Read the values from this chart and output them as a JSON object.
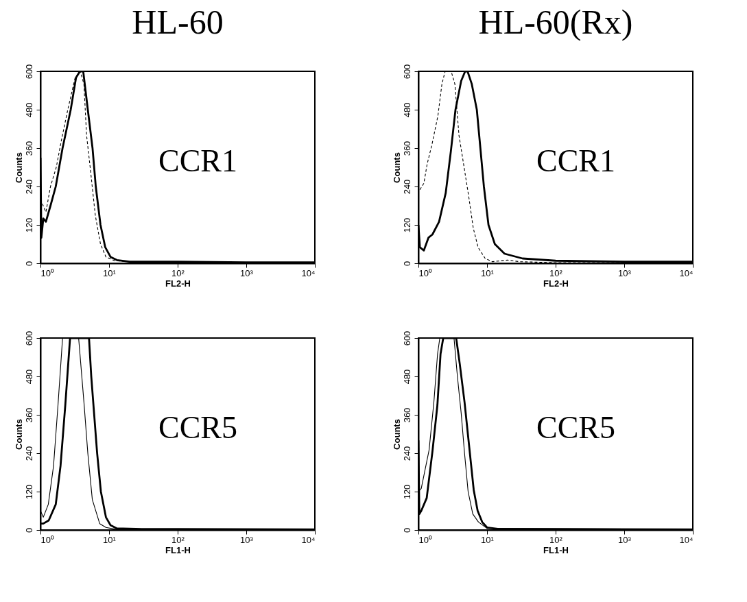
{
  "chart_data": [
    {
      "type": "line",
      "title": "HL-60",
      "xlabel": "FL2-H",
      "ylabel": "Counts",
      "annotations": [
        "CCR1"
      ],
      "log": "x",
      "grid": false,
      "marker": "none",
      "xlim": [
        1,
        10000
      ],
      "xticks": [
        {
          "value": 1,
          "label": "10⁰"
        },
        {
          "value": 10,
          "label": "10¹"
        },
        {
          "value": 100,
          "label": "10²"
        },
        {
          "value": 1000,
          "label": "10³"
        },
        {
          "value": 10000,
          "label": "10⁴"
        }
      ],
      "ylim": [
        0,
        600
      ],
      "yticks": [
        0,
        120,
        240,
        360,
        480,
        600
      ],
      "series": [
        {
          "color": "#000000",
          "line_style": "solid",
          "x": [
            1,
            1.03,
            1.1,
            1.2,
            1.4,
            1.67,
            2.1,
            2.76,
            3.3,
            3.76,
            4.2,
            4.9,
            5.74,
            6.4,
            7.5,
            8.8,
            10.5,
            13,
            20,
            100,
            1000,
            10000
          ],
          "values": [
            330,
            80,
            140,
            130,
            180,
            240,
            360,
            480,
            580,
            600,
            600,
            480,
            360,
            240,
            120,
            50,
            20,
            10,
            5,
            5,
            3,
            3
          ]
        },
        {
          "color": "#000000",
          "line_style": "dashed",
          "x": [
            1,
            1.2,
            1.4,
            1.7,
            2,
            2.5,
            3.2,
            3.8,
            4.3,
            4.7,
            5.3,
            6.3,
            7.5,
            9,
            12,
            20,
            100,
            10000
          ],
          "values": [
            200,
            160,
            240,
            300,
            380,
            480,
            580,
            600,
            560,
            400,
            300,
            150,
            60,
            20,
            8,
            5,
            3,
            2
          ]
        }
      ]
    },
    {
      "type": "line",
      "title": "HL-60(Rx)",
      "xlabel": "FL2-H",
      "ylabel": "Counts",
      "annotations": [
        "CCR1"
      ],
      "log": "x",
      "grid": false,
      "marker": "none",
      "xlim": [
        1,
        10000
      ],
      "xticks": [
        {
          "value": 1,
          "label": "10⁰"
        },
        {
          "value": 10,
          "label": "10¹"
        },
        {
          "value": 100,
          "label": "10²"
        },
        {
          "value": 1000,
          "label": "10³"
        },
        {
          "value": 10000,
          "label": "10⁴"
        }
      ],
      "ylim": [
        0,
        600
      ],
      "yticks": [
        0,
        120,
        240,
        360,
        480,
        600
      ],
      "series": [
        {
          "color": "#000000",
          "line_style": "solid",
          "x": [
            1,
            1.05,
            1.2,
            1.4,
            1.6,
            2,
            2.5,
            2.97,
            3.47,
            4.2,
            4.8,
            5.2,
            6,
            7.1,
            8,
            9,
            10.5,
            13,
            18,
            33,
            100,
            1000,
            10000
          ],
          "values": [
            120,
            50,
            40,
            80,
            90,
            130,
            220,
            350,
            480,
            570,
            600,
            600,
            560,
            480,
            360,
            240,
            120,
            60,
            30,
            15,
            8,
            5,
            5
          ]
        },
        {
          "color": "#000000",
          "line_style": "dashed",
          "x": [
            1.05,
            1.2,
            1.34,
            1.57,
            1.92,
            2.2,
            2.45,
            3,
            3.4,
            3.9,
            4.4,
            5.4,
            6.3,
            7.4,
            9.4,
            12,
            20,
            30,
            100,
            10000
          ],
          "values": [
            230,
            250,
            310,
            370,
            460,
            560,
            600,
            600,
            560,
            400,
            330,
            210,
            110,
            50,
            15,
            5,
            10,
            5,
            2,
            2
          ]
        }
      ]
    },
    {
      "type": "line",
      "xlabel": "FL1-H",
      "ylabel": "Counts",
      "annotations": [
        "CCR5"
      ],
      "log": "x",
      "grid": false,
      "marker": "none",
      "xlim": [
        1,
        10000
      ],
      "xticks": [
        {
          "value": 1,
          "label": "10⁰"
        },
        {
          "value": 10,
          "label": "10¹"
        },
        {
          "value": 100,
          "label": "10²"
        },
        {
          "value": 1000,
          "label": "10³"
        },
        {
          "value": 10000,
          "label": "10⁴"
        }
      ],
      "ylim": [
        0,
        600
      ],
      "yticks": [
        0,
        120,
        240,
        360,
        480,
        600
      ],
      "series": [
        {
          "color": "#000000",
          "line_style": "solid",
          "x": [
            1,
            1.1,
            1.32,
            1.67,
            1.96,
            2.3,
            2.7,
            3.5,
            4.4,
            5.1,
            5.5,
            6.7,
            7.6,
            9,
            10.5,
            13,
            30,
            100,
            10000
          ],
          "values": [
            20,
            20,
            30,
            80,
            200,
            390,
            600,
            600,
            600,
            600,
            480,
            240,
            120,
            40,
            15,
            5,
            3,
            3,
            2
          ]
        },
        {
          "color": "#000000",
          "line_style": "solid",
          "x": [
            1,
            1.1,
            1.3,
            1.55,
            1.8,
            2.1,
            2.8,
            3.6,
            4.3,
            4.9,
            5.7,
            7.3,
            9,
            12,
            10000
          ],
          "values": [
            60,
            40,
            80,
            200,
            390,
            600,
            600,
            600,
            400,
            240,
            95,
            20,
            8,
            3,
            2
          ]
        }
      ]
    },
    {
      "type": "line",
      "xlabel": "FL1-H",
      "ylabel": "Counts",
      "annotations": [
        "CCR5"
      ],
      "log": "x",
      "grid": false,
      "marker": "none",
      "xlim": [
        1,
        10000
      ],
      "xticks": [
        {
          "value": 1,
          "label": "10⁰"
        },
        {
          "value": 10,
          "label": "10¹"
        },
        {
          "value": 100,
          "label": "10²"
        },
        {
          "value": 1000,
          "label": "10³"
        },
        {
          "value": 10000,
          "label": "10⁴"
        }
      ],
      "ylim": [
        0,
        600
      ],
      "yticks": [
        0,
        120,
        240,
        360,
        480,
        600
      ],
      "series": [
        {
          "color": "#000000",
          "line_style": "solid",
          "x": [
            1,
            1.03,
            1.1,
            1.32,
            1.6,
            1.89,
            2.1,
            2.3,
            3,
            3.55,
            4,
            4.7,
            5.5,
            6.4,
            7.3,
            8.5,
            10,
            15,
            10000
          ],
          "values": [
            280,
            50,
            60,
            100,
            245,
            390,
            550,
            600,
            600,
            600,
            520,
            400,
            260,
            125,
            60,
            25,
            8,
            3,
            2
          ]
        },
        {
          "color": "#000000",
          "line_style": "solid",
          "x": [
            1,
            1.1,
            1.43,
            1.68,
            1.9,
            2.05,
            2.7,
            3.3,
            3.7,
            4.2,
            4.7,
            5.3,
            6.2,
            7.5,
            10,
            10000
          ],
          "values": [
            120,
            130,
            250,
            400,
            550,
            600,
            600,
            600,
            480,
            365,
            240,
            120,
            50,
            25,
            5,
            2
          ]
        }
      ]
    }
  ]
}
